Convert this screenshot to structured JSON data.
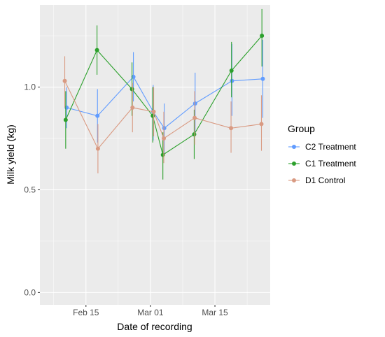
{
  "chart_data": {
    "type": "line",
    "xlabel": "Date of recording",
    "ylabel": "Milk yield (kg)",
    "x_ticks": [
      {
        "label": "Feb 15",
        "day": 15
      },
      {
        "label": "Mar 01",
        "day": 29
      },
      {
        "label": "Mar 15",
        "day": 43
      }
    ],
    "y_ticks": [
      "0.0",
      "0.5",
      "1.0"
    ],
    "xlim": [
      5,
      55
    ],
    "ylim": [
      -0.06,
      1.4
    ],
    "grid": true,
    "legend_title": "Group",
    "legend_position": "right",
    "series": [
      {
        "name": "C2 Treatment",
        "color": "#619CFF",
        "points": [
          {
            "day": 10.8,
            "y": 0.9,
            "lo": 0.8,
            "hi": 1.0
          },
          {
            "day": 17.5,
            "y": 0.86,
            "lo": 0.73,
            "hi": 0.99
          },
          {
            "day": 25.3,
            "y": 1.05,
            "lo": 0.93,
            "hi": 1.17
          },
          {
            "day": 29.6,
            "y": 0.88,
            "lo": 0.74,
            "hi": 1.01
          },
          {
            "day": 32.0,
            "y": 0.8,
            "lo": 0.67,
            "hi": 0.92
          },
          {
            "day": 38.7,
            "y": 0.92,
            "lo": 0.76,
            "hi": 1.07
          },
          {
            "day": 46.7,
            "y": 1.03,
            "lo": 0.86,
            "hi": 1.21
          },
          {
            "day": 53.4,
            "y": 1.04,
            "lo": 0.85,
            "hi": 1.23
          }
        ]
      },
      {
        "name": "C1 Treatment",
        "color": "#2ca02c",
        "points": [
          {
            "day": 10.6,
            "y": 0.84,
            "lo": 0.7,
            "hi": 0.98
          },
          {
            "day": 17.4,
            "y": 1.18,
            "lo": 1.06,
            "hi": 1.3
          },
          {
            "day": 25.0,
            "y": 0.99,
            "lo": 0.86,
            "hi": 1.12
          },
          {
            "day": 29.5,
            "y": 0.86,
            "lo": 0.73,
            "hi": 1.0
          },
          {
            "day": 31.7,
            "y": 0.67,
            "lo": 0.55,
            "hi": 0.78
          },
          {
            "day": 38.5,
            "y": 0.77,
            "lo": 0.65,
            "hi": 0.89
          },
          {
            "day": 46.6,
            "y": 1.08,
            "lo": 0.95,
            "hi": 1.22
          },
          {
            "day": 53.2,
            "y": 1.25,
            "lo": 1.1,
            "hi": 1.38
          }
        ]
      },
      {
        "name": "D1 Control",
        "color": "#D99A82",
        "points": [
          {
            "day": 10.4,
            "y": 1.03,
            "lo": 0.9,
            "hi": 1.15
          },
          {
            "day": 17.6,
            "y": 0.7,
            "lo": 0.58,
            "hi": 0.82
          },
          {
            "day": 25.1,
            "y": 0.9,
            "lo": 0.78,
            "hi": 1.02
          },
          {
            "day": 29.7,
            "y": 0.88,
            "lo": 0.76,
            "hi": 1.0
          },
          {
            "day": 31.9,
            "y": 0.75,
            "lo": 0.63,
            "hi": 0.88
          },
          {
            "day": 38.6,
            "y": 0.85,
            "lo": 0.72,
            "hi": 0.98
          },
          {
            "day": 46.5,
            "y": 0.8,
            "lo": 0.68,
            "hi": 0.93
          },
          {
            "day": 53.1,
            "y": 0.82,
            "lo": 0.69,
            "hi": 0.96
          }
        ]
      }
    ]
  }
}
